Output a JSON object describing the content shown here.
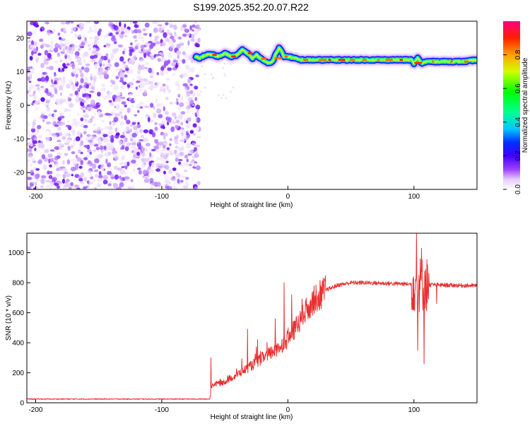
{
  "title": "S199.2025.352.20.07.R22",
  "chart_data": [
    {
      "type": "heatmap",
      "xlabel": "Height of straight line (km)",
      "ylabel": "Frequency (Hz)",
      "xlim": [
        -207,
        150
      ],
      "ylim": [
        -25,
        25
      ],
      "xticks": [
        -200,
        -100,
        0,
        100
      ],
      "yticks": [
        -20,
        -10,
        0,
        10,
        20
      ],
      "noise_region_x": [
        -207,
        -70
      ],
      "ridge": {
        "x": [
          -73,
          -70,
          -65,
          -60,
          -55,
          -50,
          -45,
          -40,
          -36,
          -32,
          -28,
          -25,
          -22,
          -18,
          -15,
          -12,
          -10,
          -7,
          -5,
          -3,
          0,
          5,
          10,
          20,
          40,
          60,
          80,
          98,
          100,
          103,
          106,
          110,
          120,
          140,
          150
        ],
        "freq": [
          14.5,
          14,
          15,
          15,
          14.5,
          15.5,
          14.5,
          15,
          16.5,
          15.5,
          14,
          15,
          14,
          13,
          12.5,
          13,
          15,
          17,
          16,
          14.5,
          14.5,
          14,
          13.5,
          13.5,
          13.5,
          13.5,
          13.5,
          13.5,
          12.5,
          14,
          12.5,
          13,
          13,
          13,
          13.5
        ]
      },
      "colorbar": {
        "label": "Normalized spectral amplitude",
        "ticks": [
          "0.0",
          "0.2",
          "0.4",
          "0.6",
          "0.8"
        ],
        "range": [
          0,
          1
        ]
      }
    },
    {
      "type": "line",
      "xlabel": "Height of straight line (km)",
      "ylabel": "SNR (10 * v/v)",
      "xlim": [
        -207,
        150
      ],
      "ylim": [
        0,
        1130
      ],
      "xticks": [
        -200,
        -100,
        0,
        100
      ],
      "yticks": [
        0,
        200,
        400,
        600,
        800,
        1000
      ],
      "series_color": "#e83030",
      "trend": {
        "x": [
          -207,
          -150,
          -62,
          -60,
          -50,
          -40,
          -30,
          -20,
          -10,
          0,
          10,
          20,
          30,
          40,
          50,
          60,
          80,
          100,
          120,
          150
        ],
        "snr": [
          25,
          25,
          25,
          120,
          140,
          190,
          240,
          300,
          350,
          420,
          550,
          680,
          750,
          785,
          800,
          800,
          795,
          790,
          785,
          780
        ]
      },
      "spikes": [
        {
          "x": -61,
          "snr": 300
        },
        {
          "x": -32,
          "snr": 490
        },
        {
          "x": -24,
          "snr": 420
        },
        {
          "x": -10,
          "snr": 560
        },
        {
          "x": -3,
          "snr": 800
        },
        {
          "x": 3,
          "snr": 720
        },
        {
          "x": 102,
          "snr": 1130
        },
        {
          "x": 103,
          "snr": 350
        },
        {
          "x": 106,
          "snr": 1030
        },
        {
          "x": 108,
          "snr": 260
        },
        {
          "x": 118,
          "snr": 660
        }
      ]
    }
  ]
}
